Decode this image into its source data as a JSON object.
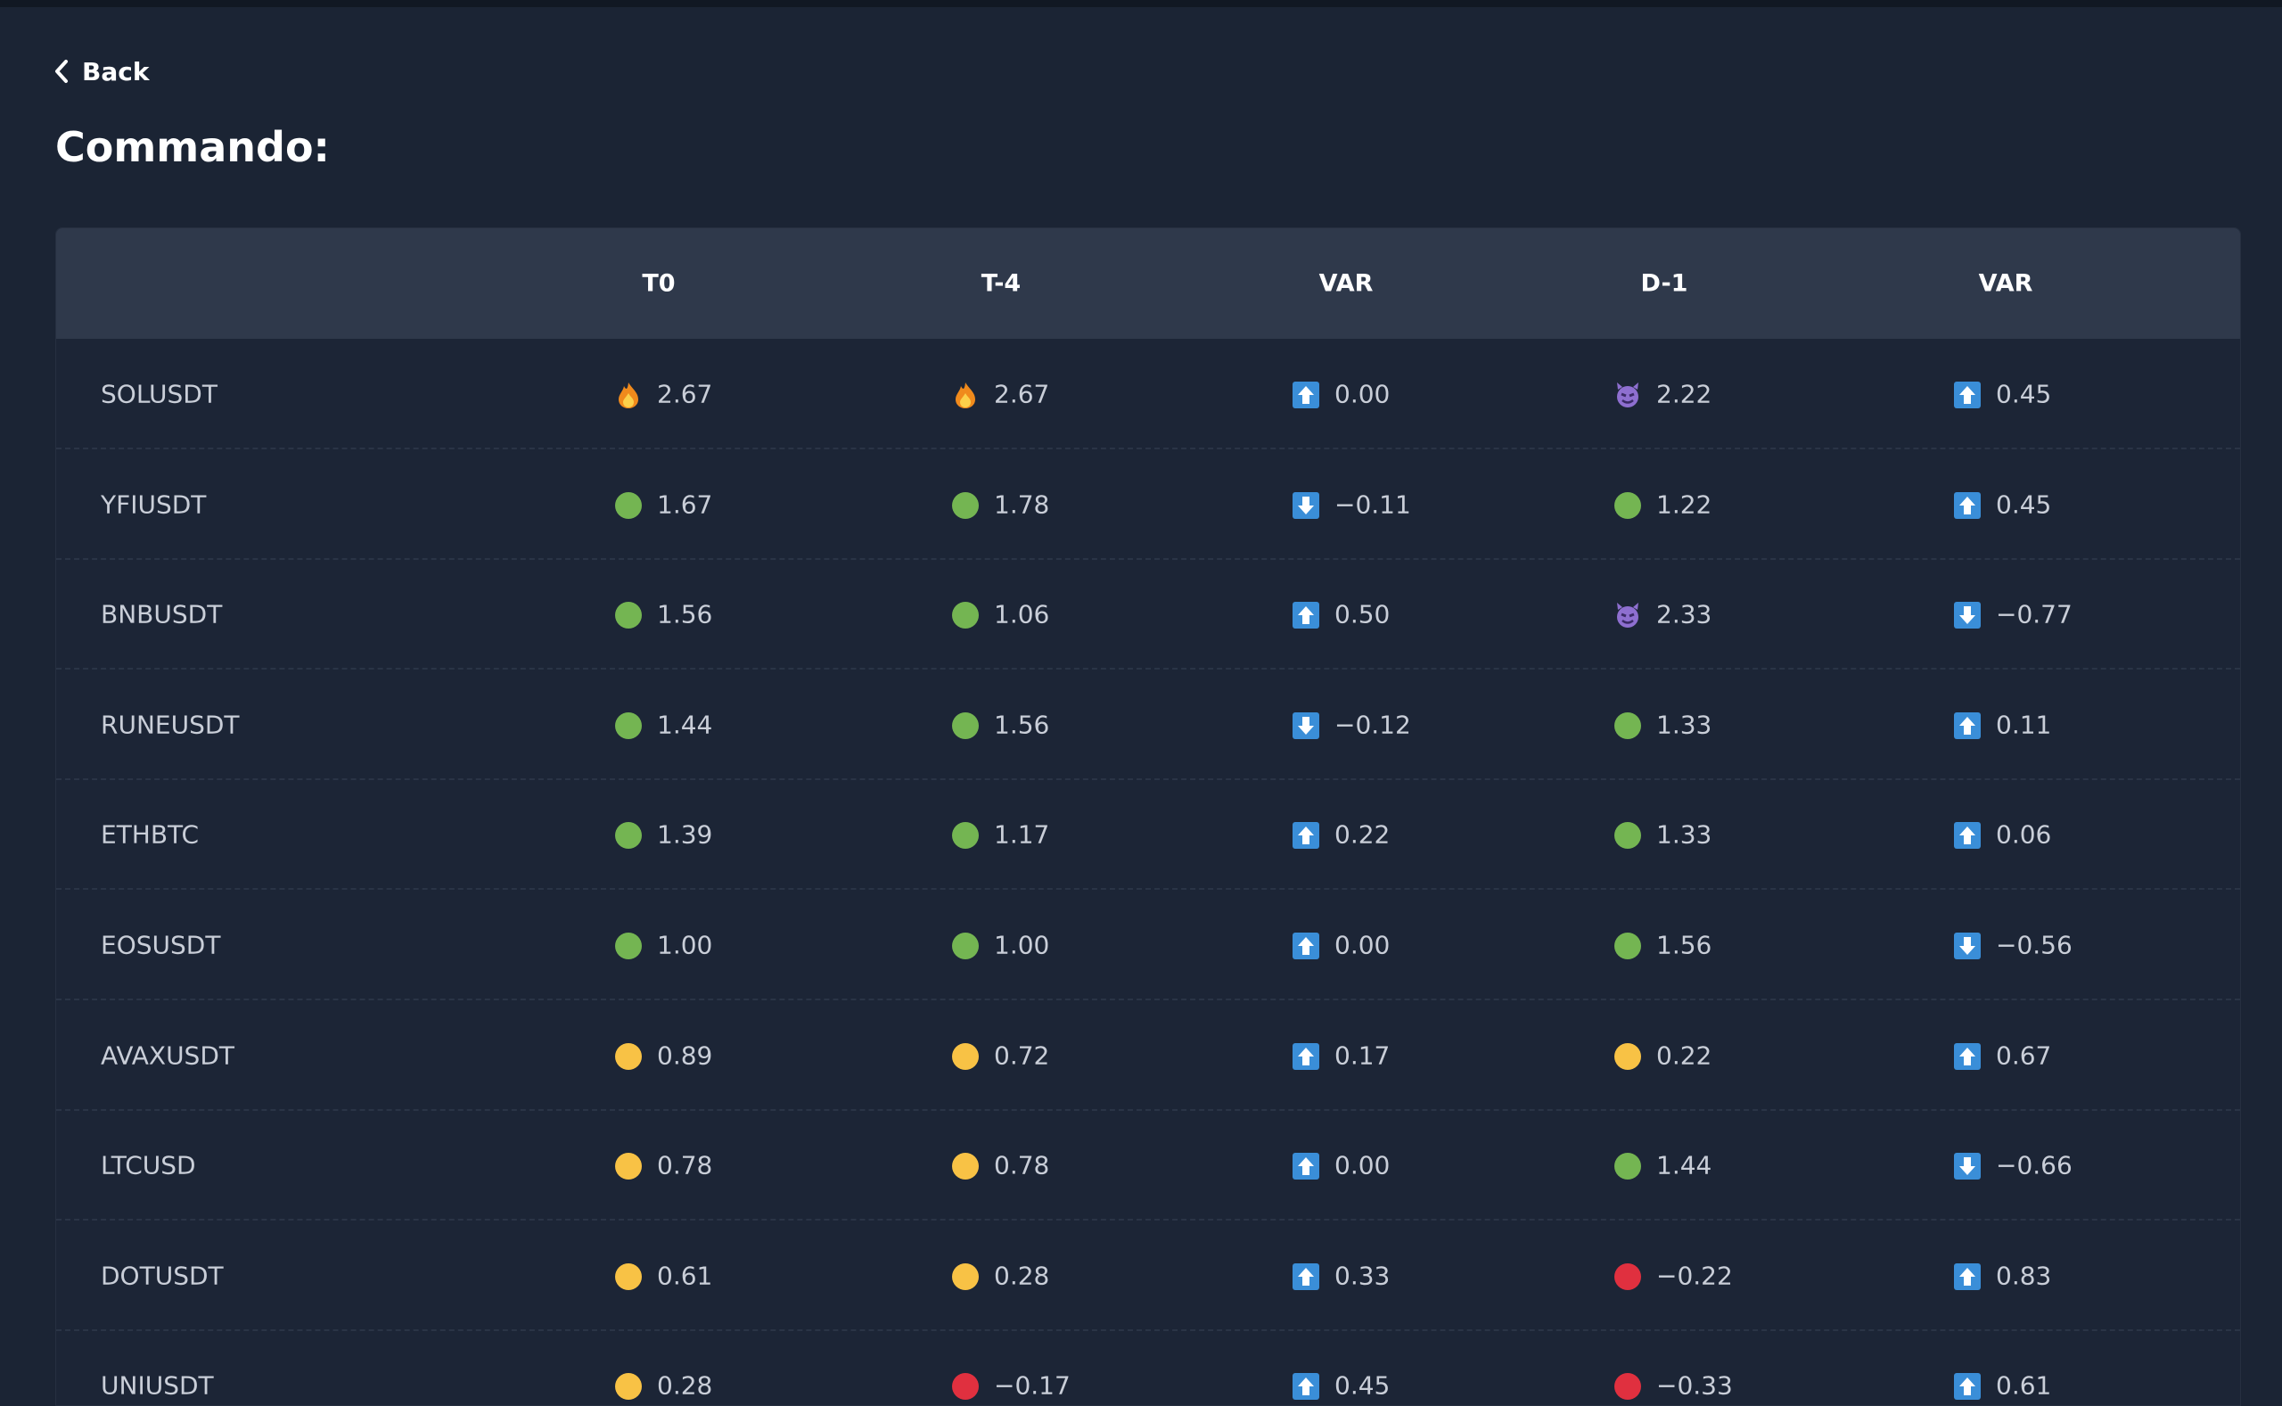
{
  "header": {
    "back": "Back",
    "title": "Commando:"
  },
  "table": {
    "headers": [
      "T0",
      "T-4",
      "VAR",
      "D-1",
      "VAR"
    ],
    "rows": [
      [
        "SOLUSDT",
        "2.67",
        "2.67",
        "0.00",
        "2.22",
        "0.45"
      ],
      [
        "YFIUSDT",
        "1.67",
        "1.78",
        "−0.11",
        "1.22",
        "0.45"
      ],
      [
        "BNBUSDT",
        "1.56",
        "1.06",
        "0.50",
        "2.33",
        "−0.77"
      ],
      [
        "RUNEUSDT",
        "1.44",
        "1.56",
        "−0.12",
        "1.33",
        "0.11"
      ],
      [
        "ETHBTC",
        "1.39",
        "1.17",
        "0.22",
        "1.33",
        "0.06"
      ],
      [
        "EOSUSDT",
        "1.00",
        "1.00",
        "0.00",
        "1.56",
        "−0.56"
      ],
      [
        "AVAXUSDT",
        "0.89",
        "0.72",
        "0.17",
        "0.22",
        "0.67"
      ],
      [
        "LTCUSD",
        "0.78",
        "0.78",
        "0.00",
        "1.44",
        "−0.66"
      ],
      [
        "DOTUSDT",
        "0.61",
        "0.28",
        "0.33",
        "−0.22",
        "0.83"
      ],
      [
        "UNIUSDT",
        "0.28",
        "−0.17",
        "0.45",
        "−0.33",
        "0.61"
      ]
    ]
  }
}
